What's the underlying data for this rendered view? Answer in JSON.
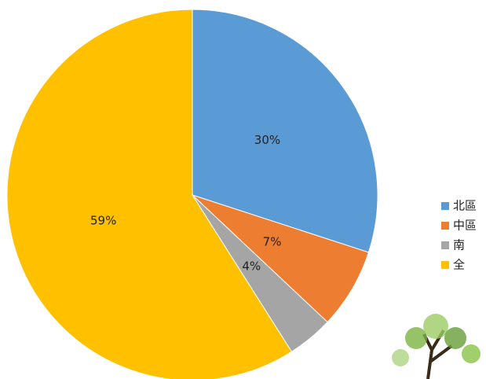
{
  "chart_data": {
    "type": "pie",
    "categories": [
      "北區",
      "中區",
      "南",
      "全"
    ],
    "values": [
      30,
      7,
      4,
      59
    ],
    "value_labels": [
      "30%",
      "7%",
      "4%",
      "59%"
    ],
    "colors": [
      "#5b9bd5",
      "#ed7d31",
      "#a5a5a5",
      "#ffc000"
    ],
    "legend": "right"
  }
}
